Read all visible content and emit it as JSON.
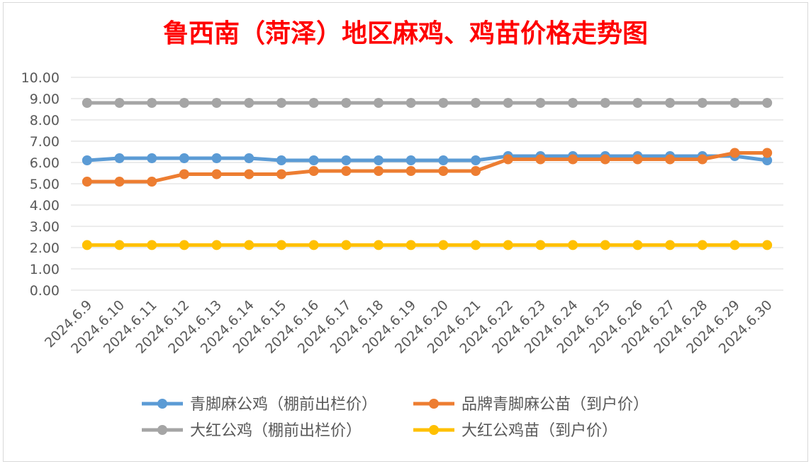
{
  "chart_data": {
    "type": "line",
    "title": "鲁西南（菏泽）地区麻鸡、鸡苗价格走势图",
    "title_color": "#ff0000",
    "xlabel": "",
    "ylabel": "",
    "ylim": [
      0,
      10
    ],
    "y_ticks": [
      "0.00",
      "1.00",
      "2.00",
      "3.00",
      "4.00",
      "5.00",
      "6.00",
      "7.00",
      "8.00",
      "9.00",
      "10.00"
    ],
    "grid": true,
    "legend_position": "bottom",
    "categories": [
      "2024.6.9",
      "2024.6.10",
      "2024.6.11",
      "2024.6.12",
      "2024.6.13",
      "2024.6.14",
      "2024.6.15",
      "2024.6.16",
      "2024.6.17",
      "2024.6.18",
      "2024.6.19",
      "2024.6.20",
      "2024.6.21",
      "2024.6.22",
      "2024.6.23",
      "2024.6.24",
      "2024.6.25",
      "2024.6.26",
      "2024.6.27",
      "2024.6.28",
      "2024.6.29",
      "2024.6.30"
    ],
    "series": [
      {
        "name": "青脚麻公鸡（棚前出栏价）",
        "color": "#5b9bd5",
        "values": [
          6.1,
          6.2,
          6.2,
          6.2,
          6.2,
          6.2,
          6.1,
          6.1,
          6.1,
          6.1,
          6.1,
          6.1,
          6.1,
          6.3,
          6.3,
          6.3,
          6.3,
          6.3,
          6.3,
          6.3,
          6.3,
          6.1
        ]
      },
      {
        "name": "品牌青脚麻公苗（到户价）",
        "color": "#ed7d31",
        "values": [
          5.1,
          5.1,
          5.1,
          5.45,
          5.45,
          5.45,
          5.45,
          5.6,
          5.6,
          5.6,
          5.6,
          5.6,
          5.6,
          6.15,
          6.15,
          6.15,
          6.15,
          6.15,
          6.15,
          6.15,
          6.45,
          6.45
        ]
      },
      {
        "name": "大红公鸡（棚前出栏价）",
        "color": "#a5a5a5",
        "values": [
          8.8,
          8.8,
          8.8,
          8.8,
          8.8,
          8.8,
          8.8,
          8.8,
          8.8,
          8.8,
          8.8,
          8.8,
          8.8,
          8.8,
          8.8,
          8.8,
          8.8,
          8.8,
          8.8,
          8.8,
          8.8,
          8.8
        ]
      },
      {
        "name": "大红公鸡苗（到户价）",
        "color": "#ffc000",
        "values": [
          2.12,
          2.12,
          2.12,
          2.12,
          2.12,
          2.12,
          2.12,
          2.12,
          2.12,
          2.12,
          2.12,
          2.12,
          2.12,
          2.12,
          2.12,
          2.12,
          2.12,
          2.12,
          2.12,
          2.12,
          2.12,
          2.12
        ]
      }
    ]
  }
}
